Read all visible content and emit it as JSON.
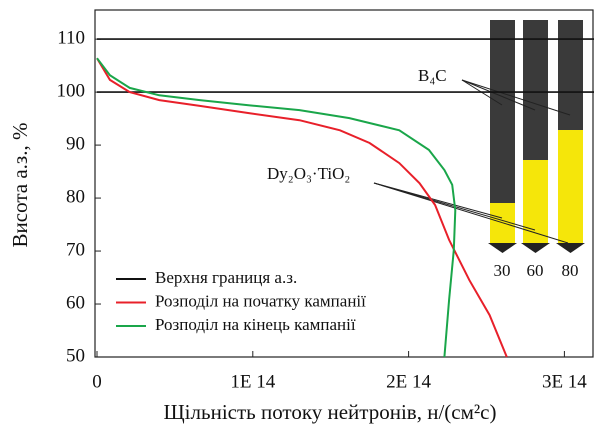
{
  "chart_data": {
    "type": "line",
    "x_label": "Щільність потоку нейтронів, н/(см²c)",
    "y_label": "Висота а.з., %",
    "xlim": [
      0,
      319000000000000
    ],
    "ylim": [
      50,
      115.5
    ],
    "xticks": [
      0,
      {
        "value": 100000000000000,
        "label": "1E 14"
      },
      {
        "value": 200000000000000,
        "label": "2E 14"
      },
      {
        "value": 300000000000000,
        "label": "3E 14"
      }
    ],
    "yticks": [
      50,
      60,
      70,
      80,
      90,
      100,
      110
    ],
    "series": [
      {
        "name": "Верхня границя а.з.",
        "color": "#111111",
        "x": [
          0,
          319000000000000,
          319000000000000,
          0,
          319000000000000
        ],
        "values": [
          110,
          110,
          null,
          100,
          100
        ]
      },
      {
        "name": "Розподіл на початку кампанії",
        "color": "#e8202a",
        "x": [
          0,
          8300000000000,
          21000000000000,
          40000000000000,
          66000000000000,
          98000000000000,
          130000000000000,
          156000000000000,
          175000000000000,
          194000000000000,
          207000000000000,
          217000000000000,
          226000000000000,
          239000000000000,
          252000000000000,
          263000000000000
        ],
        "values": [
          106.4,
          102.3,
          100,
          98.5,
          97.4,
          96,
          94.7,
          92.8,
          90.4,
          86.6,
          82.8,
          78.7,
          72.1,
          64.5,
          57.9,
          50
        ]
      },
      {
        "name": "Розподіл на кінець кампанії",
        "color": "#1aa64a",
        "x": [
          0,
          8300000000000,
          21000000000000,
          40000000000000,
          66000000000000,
          98000000000000,
          130000000000000,
          162000000000000,
          194000000000000,
          213000000000000,
          223000000000000,
          228000000000000,
          230000000000000,
          229000000000000,
          226000000000000,
          223000000000000
        ],
        "values": [
          106.4,
          103.2,
          100.8,
          99.4,
          98.5,
          97.5,
          96.6,
          95.1,
          92.8,
          89.1,
          85.3,
          82.5,
          77.7,
          70.2,
          60.8,
          50
        ]
      }
    ],
    "annotations": {
      "absorber": "B₄C",
      "burnable": "Dy₂O₃·TiO₂",
      "rods": [
        "30",
        "60",
        "80"
      ]
    }
  }
}
